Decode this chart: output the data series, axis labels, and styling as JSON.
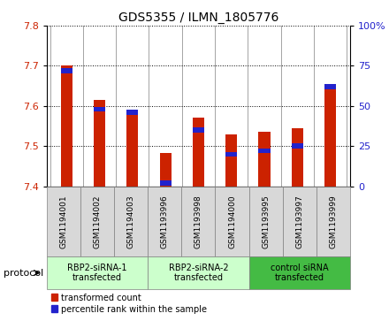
{
  "title": "GDS5355 / ILMN_1805776",
  "samples": [
    "GSM1194001",
    "GSM1194002",
    "GSM1194003",
    "GSM1193996",
    "GSM1193998",
    "GSM1194000",
    "GSM1193995",
    "GSM1193997",
    "GSM1193999"
  ],
  "red_values": [
    7.7,
    7.615,
    7.59,
    7.483,
    7.57,
    7.53,
    7.535,
    7.545,
    7.655
  ],
  "blue_values_pct": [
    72,
    48,
    46,
    2,
    35,
    20,
    22,
    25,
    62
  ],
  "ylim": [
    7.4,
    7.8
  ],
  "yticks": [
    7.4,
    7.5,
    7.6,
    7.7,
    7.8
  ],
  "y2lim": [
    0,
    100
  ],
  "y2ticks": [
    0,
    25,
    50,
    75,
    100
  ],
  "y2ticklabels": [
    "0",
    "25",
    "50",
    "75",
    "100%"
  ],
  "groups": [
    {
      "label": "RBP2-siRNA-1\ntransfected",
      "indices": [
        0,
        1,
        2
      ],
      "color": "#ccffcc"
    },
    {
      "label": "RBP2-siRNA-2\ntransfected",
      "indices": [
        3,
        4,
        5
      ],
      "color": "#ccffcc"
    },
    {
      "label": "control siRNA\ntransfected",
      "indices": [
        6,
        7,
        8
      ],
      "color": "#44bb44"
    }
  ],
  "bar_width": 0.35,
  "red_color": "#cc2200",
  "blue_color": "#2222cc",
  "sample_box_color": "#d8d8d8",
  "background_color": "#ffffff",
  "ybase": 7.4,
  "legend_red": "transformed count",
  "legend_blue": "percentile rank within the sample",
  "protocol_label": "protocol"
}
